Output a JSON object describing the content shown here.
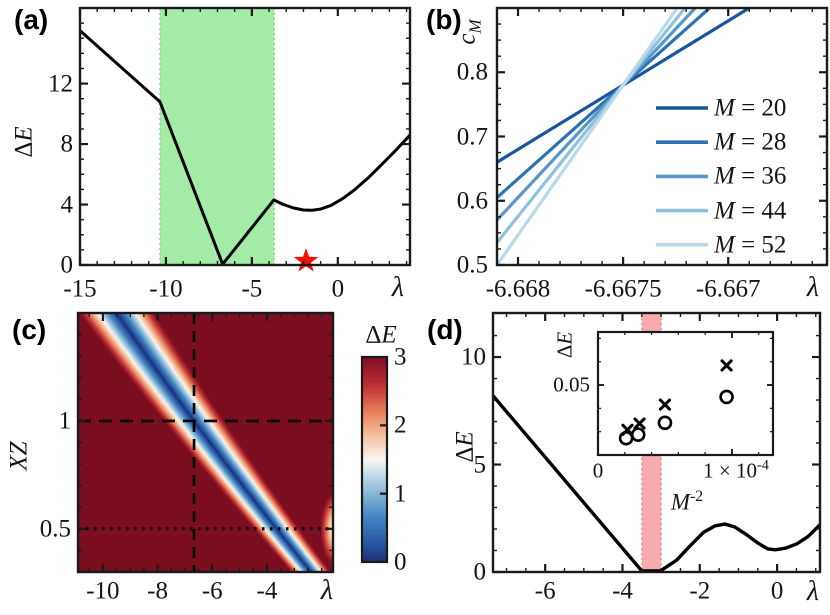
{
  "shared": {
    "delta": "Δ",
    "italic_E": "E"
  },
  "chart_data": {
    "a": {
      "type": "line",
      "panel_label": "(a)",
      "xlabel": "λ",
      "ylabel": "ΔE",
      "xlim": [
        -15,
        4.2
      ],
      "ylim": [
        0,
        17
      ],
      "xticks": [
        {
          "v": -15,
          "label": "-15"
        },
        {
          "v": -10,
          "label": "-10"
        },
        {
          "v": -5,
          "label": "-5"
        },
        {
          "v": 0,
          "label": "0"
        }
      ],
      "yticks": [
        {
          "v": 0,
          "label": "0"
        },
        {
          "v": 4,
          "label": "4"
        },
        {
          "v": 8,
          "label": "8"
        },
        {
          "v": 12,
          "label": "12"
        }
      ],
      "x_minor": 1,
      "y_minor": 1,
      "shaded_region": {
        "x0": -10.35,
        "x1": -3.7,
        "color": "#a4eca6",
        "edge": "#86c28b"
      },
      "star_marker": {
        "x": -1.85,
        "y": 0.2,
        "color": "#f60d0a"
      },
      "curve": {
        "color": "#000000",
        "points": [
          [
            -15,
            15.5
          ],
          [
            -10.35,
            10.8
          ],
          [
            -6.7,
            0.05
          ],
          [
            -3.72,
            4.3
          ],
          [
            -3.2,
            4.02
          ],
          [
            -2.6,
            3.78
          ],
          [
            -2.0,
            3.64
          ],
          [
            -1.5,
            3.62
          ],
          [
            -1.0,
            3.7
          ],
          [
            -0.4,
            3.94
          ],
          [
            0.3,
            4.4
          ],
          [
            1.0,
            5.0
          ],
          [
            1.8,
            5.8
          ],
          [
            2.6,
            6.7
          ],
          [
            3.3,
            7.5
          ],
          [
            4.2,
            8.6
          ]
        ]
      }
    },
    "b": {
      "type": "line",
      "panel_label": "(b)",
      "xlabel": "λ",
      "ylabel_base": "c",
      "ylabel_sub": "M",
      "xlim": [
        -6.6681,
        -6.66653
      ],
      "ylim": [
        0.5,
        0.9
      ],
      "xticks": [
        {
          "v": -6.668,
          "label": "-6.668"
        },
        {
          "v": -6.6675,
          "label": "-6.6675"
        },
        {
          "v": -6.667,
          "label": "-6.667"
        }
      ],
      "yticks": [
        {
          "v": 0.5,
          "label": "0.5"
        },
        {
          "v": 0.6,
          "label": "0.6"
        },
        {
          "v": 0.7,
          "label": "0.7"
        },
        {
          "v": 0.8,
          "label": "0.8"
        }
      ],
      "x_minor": 0.0001,
      "y_minor": 0.025,
      "crossing_point": {
        "x": -6.6675,
        "y": 0.78
      },
      "series": [
        {
          "label_var": "M",
          "label_rest": " = 20",
          "color": "#17559f",
          "x": [
            -6.6681,
            -6.6664
          ],
          "y": [
            0.66,
            1.0
          ]
        },
        {
          "label_var": "M",
          "label_rest": " = 28",
          "color": "#2d72b4",
          "x": [
            -6.6681,
            -6.6664
          ],
          "y": [
            0.605,
            1.1008
          ]
        },
        {
          "label_var": "M",
          "label_rest": " = 36",
          "color": "#5797c9",
          "x": [
            -6.6681,
            -6.6664
          ],
          "y": [
            0.57,
            1.165
          ]
        },
        {
          "label_var": "M",
          "label_rest": " = 44",
          "color": "#8ec1dd",
          "x": [
            -6.6681,
            -6.6664
          ],
          "y": [
            0.535,
            1.2292
          ]
        },
        {
          "label_var": "M",
          "label_rest": " = 52",
          "color": "#b9d9ea",
          "x": [
            -6.6681,
            -6.6664
          ],
          "y": [
            0.5,
            1.2933
          ]
        }
      ]
    },
    "c": {
      "type": "heatmap",
      "panel_label": "(c)",
      "xlabel": "λ",
      "ylabel": "XZ",
      "xlim": [
        -10.91,
        -1.585
      ],
      "ylim": [
        0.3,
        1.5
      ],
      "xticks": [
        {
          "v": -10,
          "label": "-10"
        },
        {
          "v": -8,
          "label": "-8"
        },
        {
          "v": -6,
          "label": "-6"
        },
        {
          "v": -4,
          "label": "-4"
        }
      ],
      "yticks": [
        {
          "v": 0.5,
          "label": "0.5"
        },
        {
          "v": 1,
          "label": "1"
        }
      ],
      "x_minor": 0.5,
      "y_minor": 0.1,
      "reference_lines": {
        "vertical_dashed_x": -6.667,
        "horizontal_dashed_y": 1.0,
        "horizontal_dotted_y": 0.5
      },
      "colorbar": {
        "min": 0,
        "max": 3,
        "ticks": [
          {
            "v": 0,
            "label": "0"
          },
          {
            "v": 1,
            "label": "1"
          },
          {
            "v": 2,
            "label": "2"
          },
          {
            "v": 3,
            "label": "3"
          }
        ]
      },
      "value_model": {
        "valley_quadratic": [
          -0.44,
          -6.61,
          0.38
        ],
        "valley_width": [
          0.55,
          0.55
        ],
        "secondary_min": {
          "x": -1.45,
          "y": 0.5,
          "rx": 0.55,
          "ry": 0.16,
          "base": 0.85,
          "slope": 2.0
        }
      },
      "colormap_stops": [
        [
          0.0,
          "#1c2f74"
        ],
        [
          0.09,
          "#2857a6"
        ],
        [
          0.22,
          "#4384c1"
        ],
        [
          0.36,
          "#96c2dc"
        ],
        [
          0.5,
          "#f7f6f3"
        ],
        [
          0.61,
          "#f6c4a0"
        ],
        [
          0.73,
          "#e8815c"
        ],
        [
          0.86,
          "#c22f35"
        ],
        [
          1.0,
          "#7c0e21"
        ]
      ]
    },
    "d": {
      "type": "line",
      "panel_label": "(d)",
      "xlabel": "λ",
      "ylabel": "ΔE",
      "xlim": [
        -7.35,
        1.11
      ],
      "ylim": [
        0,
        12.05
      ],
      "xticks": [
        {
          "v": -6,
          "label": "-6"
        },
        {
          "v": -4,
          "label": "-4"
        },
        {
          "v": -2,
          "label": "-2"
        },
        {
          "v": 0,
          "label": "0"
        }
      ],
      "yticks": [
        {
          "v": 0,
          "label": "0"
        },
        {
          "v": 5,
          "label": "5"
        },
        {
          "v": 10,
          "label": "10"
        }
      ],
      "x_minor": 0.5,
      "y_minor": 1,
      "shaded_region": {
        "x0": -3.5,
        "x1": -3.0,
        "color": "#f7abaf",
        "edge": "#e08b90"
      },
      "curve": {
        "color": "#000000",
        "points": [
          [
            -7.35,
            8.2
          ],
          [
            -3.5,
            0.05
          ],
          [
            -3.02,
            0.05
          ],
          [
            -2.6,
            0.55
          ],
          [
            -2.26,
            1.2
          ],
          [
            -1.9,
            1.85
          ],
          [
            -1.6,
            2.15
          ],
          [
            -1.35,
            2.23
          ],
          [
            -1.1,
            2.1
          ],
          [
            -0.8,
            1.75
          ],
          [
            -0.5,
            1.35
          ],
          [
            -0.25,
            1.08
          ],
          [
            -0.05,
            1.03
          ],
          [
            0.2,
            1.1
          ],
          [
            0.5,
            1.3
          ],
          [
            0.8,
            1.65
          ],
          [
            1.11,
            2.2
          ]
        ]
      },
      "inset": {
        "ylabel": "ΔE",
        "xlabel_base": "M",
        "xlabel_exp": "-2",
        "xlim": [
          0,
          0.00013066
        ],
        "ylim": [
          0,
          0.0879
        ],
        "x_major": [
          0.0001
        ],
        "x_minor": 2e-05,
        "y_major": [
          0.05
        ],
        "y_minor": 0.0166667,
        "xtick_zero_label": "0",
        "xtick_one_main": "1 × 10",
        "xtick_one_exp": "-4",
        "ytick_label": "0.05",
        "series_x": {
          "marker": "x",
          "points": [
            [
              2.2e-05,
              0.018
            ],
            [
              3.1e-05,
              0.0225
            ],
            [
              5e-05,
              0.036
            ],
            [
              9.6e-05,
              0.064
            ]
          ]
        },
        "series_o": {
          "marker": "o",
          "points": [
            [
              2.1e-05,
              0.012
            ],
            [
              3e-05,
              0.0145
            ],
            [
              5e-05,
              0.023
            ],
            [
              9.6e-05,
              0.0415
            ]
          ]
        }
      }
    }
  }
}
